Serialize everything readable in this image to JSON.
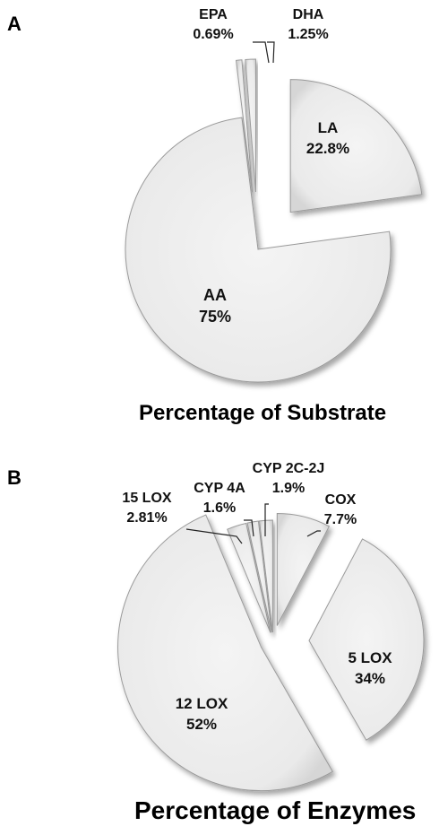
{
  "panels": {
    "a": {
      "letter": "A",
      "title": "Percentage of Substrate"
    },
    "b": {
      "letter": "B",
      "title": "Percentage of Enzymes"
    }
  },
  "colors": {
    "slice_fill": "#eeeeee",
    "slice_edge": "#9a9a9a",
    "leader": "#222222"
  },
  "chart_data": [
    {
      "type": "pie",
      "title": "Percentage of Substrate",
      "slices": [
        {
          "label": "LA",
          "value_label": "22.8%",
          "value": 22.8
        },
        {
          "label": "AA",
          "value_label": "75%",
          "value": 75
        },
        {
          "label": "EPA",
          "value_label": "0.69%",
          "value": 0.69
        },
        {
          "label": "DHA",
          "value_label": "1.25%",
          "value": 1.25
        }
      ]
    },
    {
      "type": "pie",
      "title": "Percentage of Enzymes",
      "slices": [
        {
          "label": "COX",
          "value_label": "7.7%",
          "value": 7.7
        },
        {
          "label": "5 LOX",
          "value_label": "34%",
          "value": 34
        },
        {
          "label": "12 LOX",
          "value_label": "52%",
          "value": 52
        },
        {
          "label": "15 LOX",
          "value_label": "2.81%",
          "value": 2.81
        },
        {
          "label": "CYP 4A",
          "value_label": "1.6%",
          "value": 1.6
        },
        {
          "label": "CYP 2C-2J",
          "value_label": "1.9%",
          "value": 1.9
        }
      ]
    }
  ]
}
